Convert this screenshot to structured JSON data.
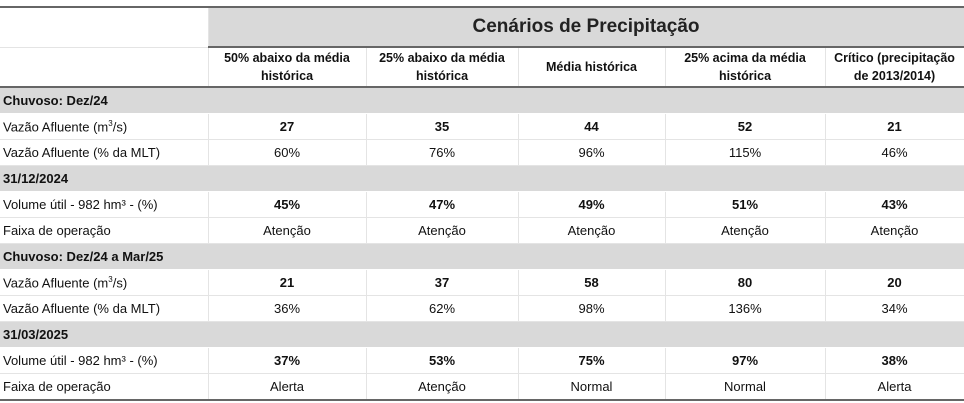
{
  "title": "Cenários de Precipitação",
  "columns": [
    "50% abaixo da média histórica",
    "25% abaixo da média histórica",
    "Média histórica",
    "25% acima da média histórica",
    "Crítico (precipitação de 2013/2014)"
  ],
  "sections": [
    {
      "label": "Chuvoso: Dez/24",
      "rows": [
        {
          "label": "Vazão Afluente (m",
          "sup": "3",
          "suffix": "/s)",
          "bold": true,
          "values": [
            "27",
            "35",
            "44",
            "52",
            "21"
          ]
        },
        {
          "label": "Vazão Afluente (% da MLT)",
          "bold": false,
          "values": [
            "60%",
            "76%",
            "96%",
            "115%",
            "46%"
          ]
        }
      ]
    },
    {
      "label": "31/12/2024",
      "rows": [
        {
          "label": "Volume útil - 982 hm³ - (%)",
          "bold": true,
          "values": [
            "45%",
            "47%",
            "49%",
            "51%",
            "43%"
          ]
        },
        {
          "label": "Faixa de operação",
          "bold": false,
          "values": [
            "Atenção",
            "Atenção",
            "Atenção",
            "Atenção",
            "Atenção"
          ]
        }
      ]
    },
    {
      "label": "Chuvoso: Dez/24 a Mar/25",
      "rows": [
        {
          "label": "Vazão Afluente (m",
          "sup": "3",
          "suffix": "/s)",
          "bold": true,
          "values": [
            "21",
            "37",
            "58",
            "80",
            "20"
          ]
        },
        {
          "label": "Vazão Afluente (% da MLT)",
          "bold": false,
          "values": [
            "36%",
            "62%",
            "98%",
            "136%",
            "34%"
          ]
        }
      ]
    },
    {
      "label": "31/03/2025",
      "rows": [
        {
          "label": "Volume útil - 982 hm³ - (%)",
          "bold": true,
          "values": [
            "37%",
            "53%",
            "75%",
            "97%",
            "38%"
          ]
        },
        {
          "label": "Faixa de operação",
          "bold": false,
          "values": [
            "Alerta",
            "Atenção",
            "Normal",
            "Normal",
            "Alerta"
          ]
        }
      ]
    }
  ]
}
